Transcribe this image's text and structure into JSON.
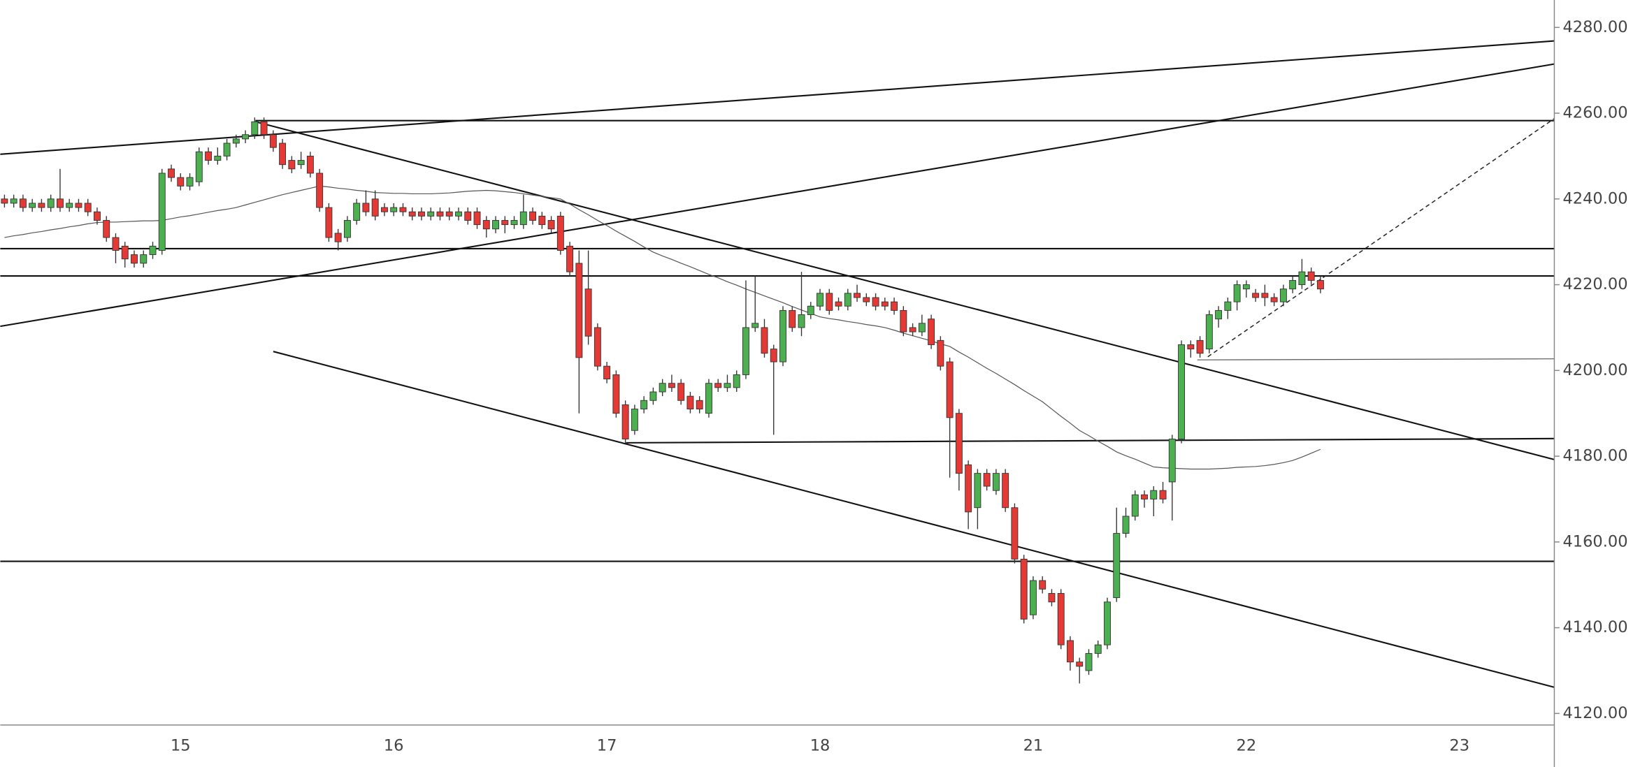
{
  "chart_data": {
    "type": "candlestick",
    "categories": [
      null,
      null,
      null,
      null,
      null,
      null,
      null,
      null,
      null,
      null,
      null,
      null,
      null,
      null,
      null,
      null,
      null,
      null,
      null,
      "15",
      null,
      null,
      null,
      null,
      null,
      null,
      null,
      null,
      null,
      null,
      null,
      null,
      null,
      null,
      null,
      null,
      null,
      null,
      null,
      null,
      null,
      null,
      "16",
      null,
      null,
      null,
      null,
      null,
      null,
      null,
      null,
      null,
      null,
      null,
      null,
      null,
      null,
      null,
      null,
      null,
      null,
      null,
      null,
      null,
      null,
      "17",
      null,
      null,
      null,
      null,
      null,
      null,
      null,
      null,
      null,
      null,
      null,
      null,
      null,
      null,
      null,
      null,
      null,
      null,
      null,
      null,
      null,
      null,
      "18",
      null,
      null,
      null,
      null,
      null,
      null,
      null,
      null,
      null,
      null,
      null,
      null,
      null,
      null,
      null,
      null,
      null,
      null,
      null,
      null,
      null,
      null,
      "21",
      null,
      null,
      null,
      null,
      null,
      null,
      null,
      null,
      null,
      null,
      null,
      null,
      null,
      null,
      null,
      null,
      null,
      null,
      null,
      null,
      null,
      null,
      "22",
      null,
      null,
      null,
      null,
      null,
      null,
      null,
      null,
      null,
      null,
      null,
      null,
      null,
      null,
      null,
      null,
      null,
      null,
      null,
      null,
      null,
      null,
      "23"
    ],
    "open": [
      4240,
      4239,
      4240,
      4238,
      4239,
      4238,
      4240,
      4238,
      4239,
      4239,
      4237,
      4235,
      4231,
      4229,
      4227,
      4225,
      4227,
      4228,
      4247,
      4245,
      4243,
      4244,
      4251,
      4249,
      4250,
      4253,
      4254,
      4255,
      4258,
      4255,
      4253,
      4249,
      4248,
      4250,
      4246,
      4238,
      4232,
      4231,
      4235,
      4239,
      4240,
      4238,
      4237,
      4238,
      4237,
      4237,
      4236,
      4237,
      4237,
      4236,
      4237,
      4237,
      4235,
      4233,
      4235,
      4234,
      4234,
      4237,
      4236,
      4235,
      4236,
      4229,
      4225,
      4219,
      4210,
      4201,
      4199,
      4192,
      4186,
      4191,
      4193,
      4195,
      4197,
      4197,
      4194,
      4193,
      4190,
      4197,
      4196,
      4196,
      4199,
      4210,
      4210,
      4205,
      4202,
      4214,
      4210,
      4213,
      4215,
      4218,
      4216,
      4215,
      4218,
      4217,
      4217,
      4216,
      4216,
      4214,
      4210,
      4209,
      4212,
      4207,
      4202,
      4190,
      4178,
      4168,
      4176,
      4172,
      4176,
      4168,
      4156,
      4143,
      4151,
      4148,
      4148,
      4137,
      4132,
      4130,
      4134,
      4136,
      4147,
      4162,
      4166,
      4171,
      4170,
      4172,
      4174,
      4184,
      4206,
      4207,
      4205,
      4212,
      4214,
      4216,
      4219,
      4218,
      4218,
      4217,
      4216,
      4219,
      4220,
      4223,
      4221,
      null,
      null,
      null,
      null,
      null,
      null,
      null,
      null,
      null,
      null,
      null,
      null,
      null,
      null,
      null
    ],
    "high": [
      4241,
      4241,
      4241,
      4240,
      4240,
      4241,
      4247,
      4240,
      4240,
      4240,
      4238,
      4236,
      4232,
      4230,
      4228,
      4228,
      4230,
      4247,
      4248,
      4246,
      4246,
      4252,
      4252,
      4252,
      4254,
      4255,
      4256,
      4259,
      4259,
      4256,
      4254,
      4250,
      4251,
      4251,
      4247,
      4239,
      4233,
      4236,
      4240,
      4242,
      4242,
      4239,
      4239,
      4239,
      4238,
      4238,
      4238,
      4238,
      4238,
      4238,
      4238,
      4238,
      4236,
      4236,
      4236,
      4236,
      4241,
      4238,
      4237,
      4236,
      4237,
      4230,
      4228,
      4228,
      4211,
      4202,
      4200,
      4193,
      4192,
      4194,
      4196,
      4198,
      4199,
      4198,
      4195,
      4194,
      4198,
      4198,
      4199,
      4200,
      4221,
      4222,
      4212,
      4206,
      4215,
      4215,
      4223,
      4216,
      4219,
      4219,
      4217,
      4219,
      4220,
      4218,
      4218,
      4217,
      4217,
      4215,
      4211,
      4213,
      4213,
      4208,
      4203,
      4191,
      4179,
      4177,
      4177,
      4177,
      4177,
      4169,
      4157,
      4152,
      4152,
      4149,
      4149,
      4138,
      4133,
      4135,
      4137,
      4147,
      4168,
      4168,
      4172,
      4172,
      4173,
      4174,
      4185,
      4207,
      4207,
      4208,
      4214,
      4215,
      4217,
      4221,
      4221,
      4219,
      4220,
      4218,
      4220,
      4222,
      4226,
      4224,
      4222,
      null,
      null,
      null,
      null,
      null,
      null,
      null,
      null,
      null,
      null,
      null,
      null,
      null,
      null,
      null
    ],
    "low": [
      4238,
      4238,
      4237,
      4237,
      4237,
      4237,
      4237,
      4237,
      4237,
      4236,
      4234,
      4230,
      4225,
      4224,
      4224,
      4224,
      4226,
      4227,
      4244,
      4242,
      4242,
      4243,
      4248,
      4248,
      4249,
      4252,
      4253,
      4254,
      4254,
      4251,
      4247,
      4246,
      4247,
      4245,
      4237,
      4230,
      4228,
      4230,
      4234,
      4236,
      4235,
      4236,
      4236,
      4236,
      4235,
      4235,
      4235,
      4235,
      4235,
      4235,
      4234,
      4233,
      4231,
      4232,
      4232,
      4233,
      4233,
      4234,
      4233,
      4232,
      4227,
      4222,
      4190,
      4206,
      4200,
      4197,
      4189,
      4183,
      4185,
      4190,
      4192,
      4194,
      4195,
      4192,
      4190,
      4190,
      4189,
      4195,
      4195,
      4195,
      4198,
      4209,
      4203,
      4185,
      4201,
      4209,
      4208,
      4212,
      4214,
      4213,
      4214,
      4214,
      4216,
      4215,
      4214,
      4214,
      4213,
      4208,
      4208,
      4208,
      4205,
      4200,
      4175,
      4172,
      4163,
      4163,
      4172,
      4171,
      4167,
      4155,
      4141,
      4142,
      4148,
      4145,
      4135,
      4130,
      4127,
      4129,
      4133,
      4135,
      4146,
      4161,
      4165,
      4168,
      4166,
      4169,
      4165,
      4183,
      4203,
      4203,
      4204,
      4210,
      4212,
      4214,
      4217,
      4216,
      4215,
      4215,
      4215,
      4218,
      4219,
      4220,
      4218,
      null,
      null,
      null,
      null,
      null,
      null,
      null,
      null,
      null,
      null,
      null,
      null,
      null,
      null,
      null
    ],
    "close": [
      4239,
      4240,
      4238,
      4239,
      4238,
      4240,
      4238,
      4239,
      4238,
      4237,
      4235,
      4231,
      4228,
      4226,
      4225,
      4227,
      4229,
      4246,
      4245,
      4243,
      4245,
      4251,
      4249,
      4250,
      4253,
      4254,
      4255,
      4258,
      4255,
      4252,
      4248,
      4247,
      4249,
      4246,
      4238,
      4231,
      4230,
      4235,
      4239,
      4237,
      4236,
      4237,
      4238,
      4237,
      4236,
      4236,
      4237,
      4236,
      4236,
      4237,
      4235,
      4234,
      4233,
      4235,
      4234,
      4235,
      4237,
      4235,
      4234,
      4233,
      4228,
      4223,
      4203,
      4208,
      4201,
      4198,
      4190,
      4184,
      4191,
      4193,
      4195,
      4197,
      4196,
      4193,
      4191,
      4191,
      4197,
      4196,
      4197,
      4199,
      4210,
      4211,
      4204,
      4202,
      4214,
      4210,
      4213,
      4215,
      4218,
      4214,
      4215,
      4218,
      4217,
      4216,
      4215,
      4215,
      4214,
      4209,
      4209,
      4211,
      4206,
      4201,
      4189,
      4176,
      4167,
      4176,
      4173,
      4176,
      4168,
      4156,
      4142,
      4151,
      4149,
      4146,
      4136,
      4132,
      4131,
      4134,
      4136,
      4146,
      4162,
      4166,
      4171,
      4170,
      4172,
      4170,
      4184,
      4206,
      4205,
      4204,
      4213,
      4214,
      4216,
      4220,
      4220,
      4217,
      4217,
      4216,
      4219,
      4221,
      4223,
      4221,
      4219,
      null,
      null,
      null,
      null,
      null,
      null,
      null,
      null,
      null,
      null,
      null,
      null,
      null,
      null,
      null
    ],
    "ma_values": [
      4231,
      4231.4,
      4231.7,
      4232.1,
      4232.4,
      4232.8,
      4233.1,
      4233.5,
      4233.8,
      4234.2,
      4234.5,
      4234.6,
      4234.6,
      4234.7,
      4234.8,
      4234.9,
      4234.9,
      4235,
      4235.4,
      4235.8,
      4236.1,
      4236.5,
      4236.9,
      4237.3,
      4237.6,
      4238,
      4238.6,
      4239.2,
      4239.8,
      4240.4,
      4241,
      4241.5,
      4242,
      4242.5,
      4243,
      4242.8,
      4242.5,
      4242.3,
      4242,
      4241.8,
      4241.5,
      4241.4,
      4241.3,
      4241.3,
      4241.2,
      4241.2,
      4241.2,
      4241.3,
      4241.4,
      4241.6,
      4241.8,
      4241.9,
      4242,
      4241.9,
      4241.7,
      4241.5,
      4241.2,
      4240.9,
      4240.6,
      4240.3,
      4240,
      4238.8,
      4237.5,
      4236.3,
      4235,
      4233.8,
      4232.5,
      4231.3,
      4230.1,
      4228.8,
      4227.6,
      4226.7,
      4225.9,
      4225,
      4224.2,
      4223.3,
      4222.4,
      4221.6,
      4220.7,
      4219.9,
      4219,
      4218.2,
      4217.4,
      4216.6,
      4215.8,
      4214.9,
      4214.1,
      4213.3,
      4212.5,
      4212.1,
      4211.8,
      4211.4,
      4211.1,
      4210.7,
      4210.4,
      4210,
      4209.4,
      4208.7,
      4208.1,
      4207.5,
      4206.9,
      4206.2,
      4205.6,
      4204.3,
      4203.1,
      4201.8,
      4200.5,
      4199.3,
      4198,
      4196.7,
      4195.3,
      4194,
      4192.7,
      4191,
      4189.3,
      4187.7,
      4186,
      4184.8,
      4183.5,
      4182.3,
      4181,
      4180.1,
      4179.3,
      4178.4,
      4177.5,
      4177.3,
      4177.2,
      4177.1,
      4177,
      4177,
      4177,
      4177.1,
      4177.2,
      4177.4,
      4177.5,
      4177.6,
      4177.8,
      4178.1,
      4178.5,
      4179,
      4179.8,
      4180.7,
      4181.6,
      null,
      null,
      null,
      null,
      null,
      null,
      null,
      null,
      null,
      null,
      null,
      null,
      null,
      null,
      null
    ],
    "ma_color": "#555555",
    "up_color": "#4caf50",
    "down_color": "#e53935",
    "ylim": [
      4117.3,
      4286.4
    ],
    "yticks": [
      {
        "value": 4120,
        "label": "4120.00"
      },
      {
        "value": 4140,
        "label": "4140.00"
      },
      {
        "value": 4160,
        "label": "4160.00"
      },
      {
        "value": 4180,
        "label": "4180.00"
      },
      {
        "value": 4200,
        "label": "4200.00"
      },
      {
        "value": 4220,
        "label": "4220.00"
      },
      {
        "value": 4240,
        "label": "4240.00"
      },
      {
        "value": 4260,
        "label": "4260.00"
      },
      {
        "value": 4280,
        "label": "4280.00"
      }
    ],
    "grid": false
  }
}
